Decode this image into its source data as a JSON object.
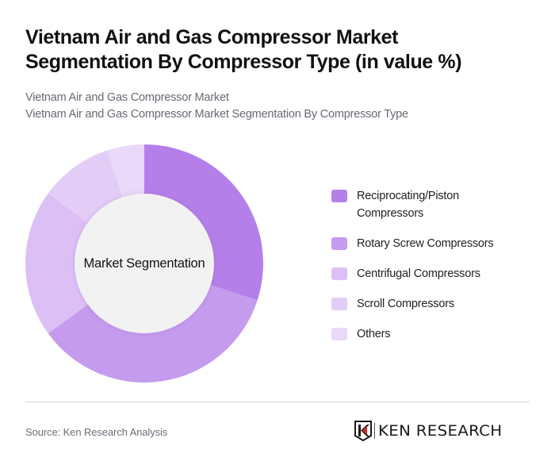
{
  "header": {
    "title": "Vietnam Air and Gas Compressor Market Segmentation By Compressor Type (in value %)",
    "breadcrumb": [
      "Vietnam Air and Gas Compressor Market",
      "Vietnam Air and Gas Compressor Market Segmentation By Compressor Type"
    ]
  },
  "chart": {
    "center_label": "Market Segmentation"
  },
  "legend": {
    "items": [
      {
        "label": "Reciprocating/Piston Compressors",
        "color": "#b57fe9"
      },
      {
        "label": "Rotary Screw Compressors",
        "color": "#c59bee"
      },
      {
        "label": "Centrifugal Compressors",
        "color": "#dcc0f5"
      },
      {
        "label": "Scroll Compressors",
        "color": "#e3cdf7"
      },
      {
        "label": "Others",
        "color": "#ead9f9"
      }
    ]
  },
  "footer": {
    "source": "Source: Ken Research Analysis",
    "logo_text": "KEN RESEARCH"
  },
  "chart_data": {
    "type": "pie",
    "variant": "donut",
    "title": "Vietnam Air and Gas Compressor Market Segmentation By Compressor Type (in value %)",
    "center_label": "Market Segmentation",
    "categories": [
      "Reciprocating/Piston Compressors",
      "Rotary Screw Compressors",
      "Centrifugal Compressors",
      "Scroll Compressors",
      "Others"
    ],
    "values": [
      30,
      35,
      20,
      10,
      5
    ],
    "colors": [
      "#b57fe9",
      "#c59bee",
      "#dcc0f5",
      "#e3cdf7",
      "#ead9f9"
    ],
    "unit": "%",
    "legend_position": "right",
    "start_angle": "12 o'clock, clockwise"
  }
}
